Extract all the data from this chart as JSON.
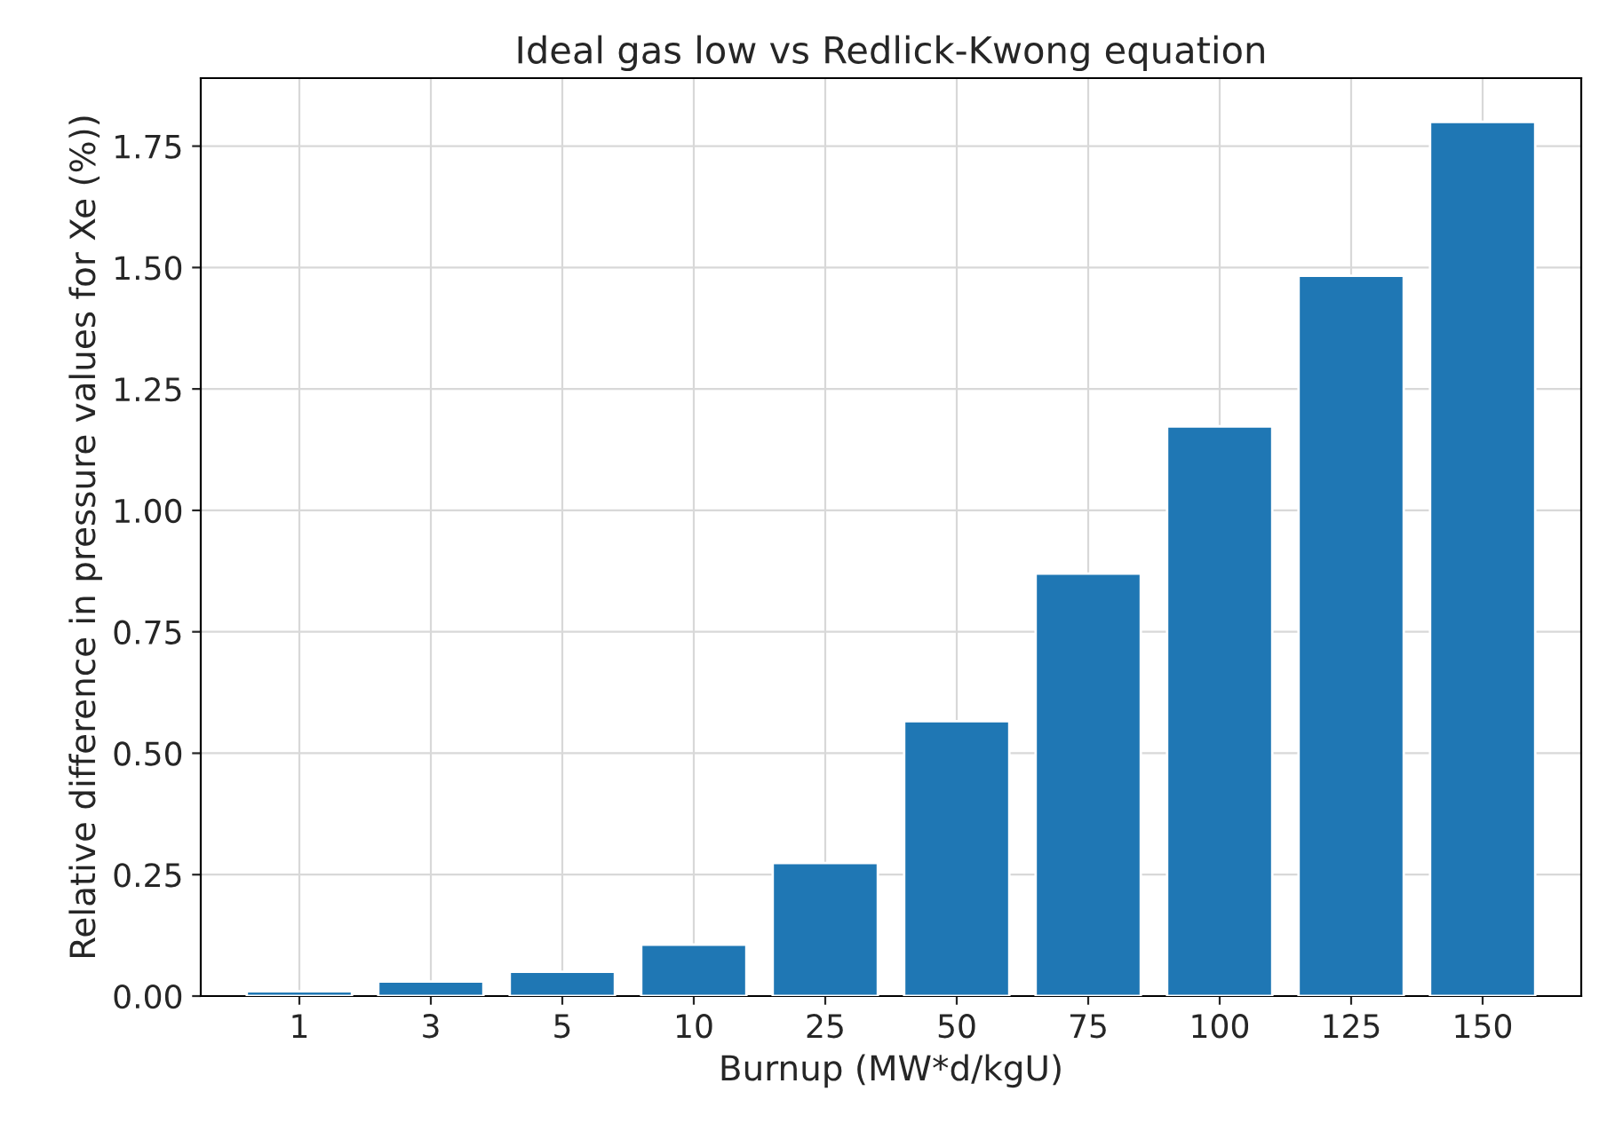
{
  "chart_data": {
    "type": "bar",
    "title": "Ideal gas low vs Redlick-Kwong equation",
    "xlabel": "Burnup (MW*d/kgU)",
    "ylabel": "Relative difference in pressure values for Xe (%))",
    "categories": [
      "1",
      "3",
      "5",
      "10",
      "25",
      "50",
      "75",
      "100",
      "125",
      "150"
    ],
    "values": [
      0.01,
      0.03,
      0.05,
      0.106,
      0.274,
      0.566,
      0.87,
      1.173,
      1.483,
      1.8
    ],
    "color": "#1f77b4",
    "ylim": [
      0,
      1.89
    ],
    "yticks": [
      {
        "value": 0,
        "label": "0.00"
      },
      {
        "value": 0.25,
        "label": "0.25"
      },
      {
        "value": 0.5,
        "label": "0.50"
      },
      {
        "value": 0.75,
        "label": "0.75"
      },
      {
        "value": 1,
        "label": "1.00"
      },
      {
        "value": 1.25,
        "label": "1.25"
      },
      {
        "value": 1.5,
        "label": "1.50"
      },
      {
        "value": 1.75,
        "label": "1.75"
      }
    ],
    "grid": true,
    "legend": false
  }
}
